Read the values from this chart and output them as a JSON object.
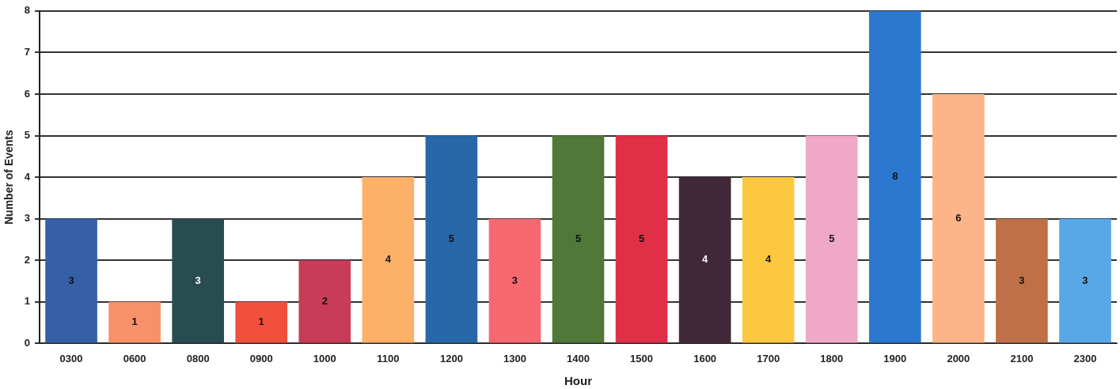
{
  "chart_data": {
    "type": "bar",
    "xlabel": "Hour",
    "ylabel": "Number of Events",
    "categories": [
      "0300",
      "0600",
      "0800",
      "0900",
      "1000",
      "1100",
      "1200",
      "1300",
      "1400",
      "1500",
      "1600",
      "1700",
      "1800",
      "1900",
      "2000",
      "2100",
      "2300"
    ],
    "values": [
      3,
      1,
      3,
      1,
      2,
      4,
      5,
      3,
      5,
      5,
      4,
      4,
      5,
      8,
      6,
      3,
      3
    ],
    "colors": [
      "#3560a8",
      "#f89068",
      "#284c50",
      "#f0503c",
      "#c83c58",
      "#fcb068",
      "#2868a8",
      "#f86870",
      "#507838",
      "#e03048",
      "#402838",
      "#fcc840",
      "#f0a8c8",
      "#2c78d0",
      "#fcb488",
      "#c07048",
      "#58a8e8"
    ],
    "ylim": [
      0,
      8
    ],
    "yticks": [
      0,
      1,
      2,
      3,
      4,
      5,
      6,
      7,
      8
    ],
    "grid": "y",
    "data_labels": true
  }
}
